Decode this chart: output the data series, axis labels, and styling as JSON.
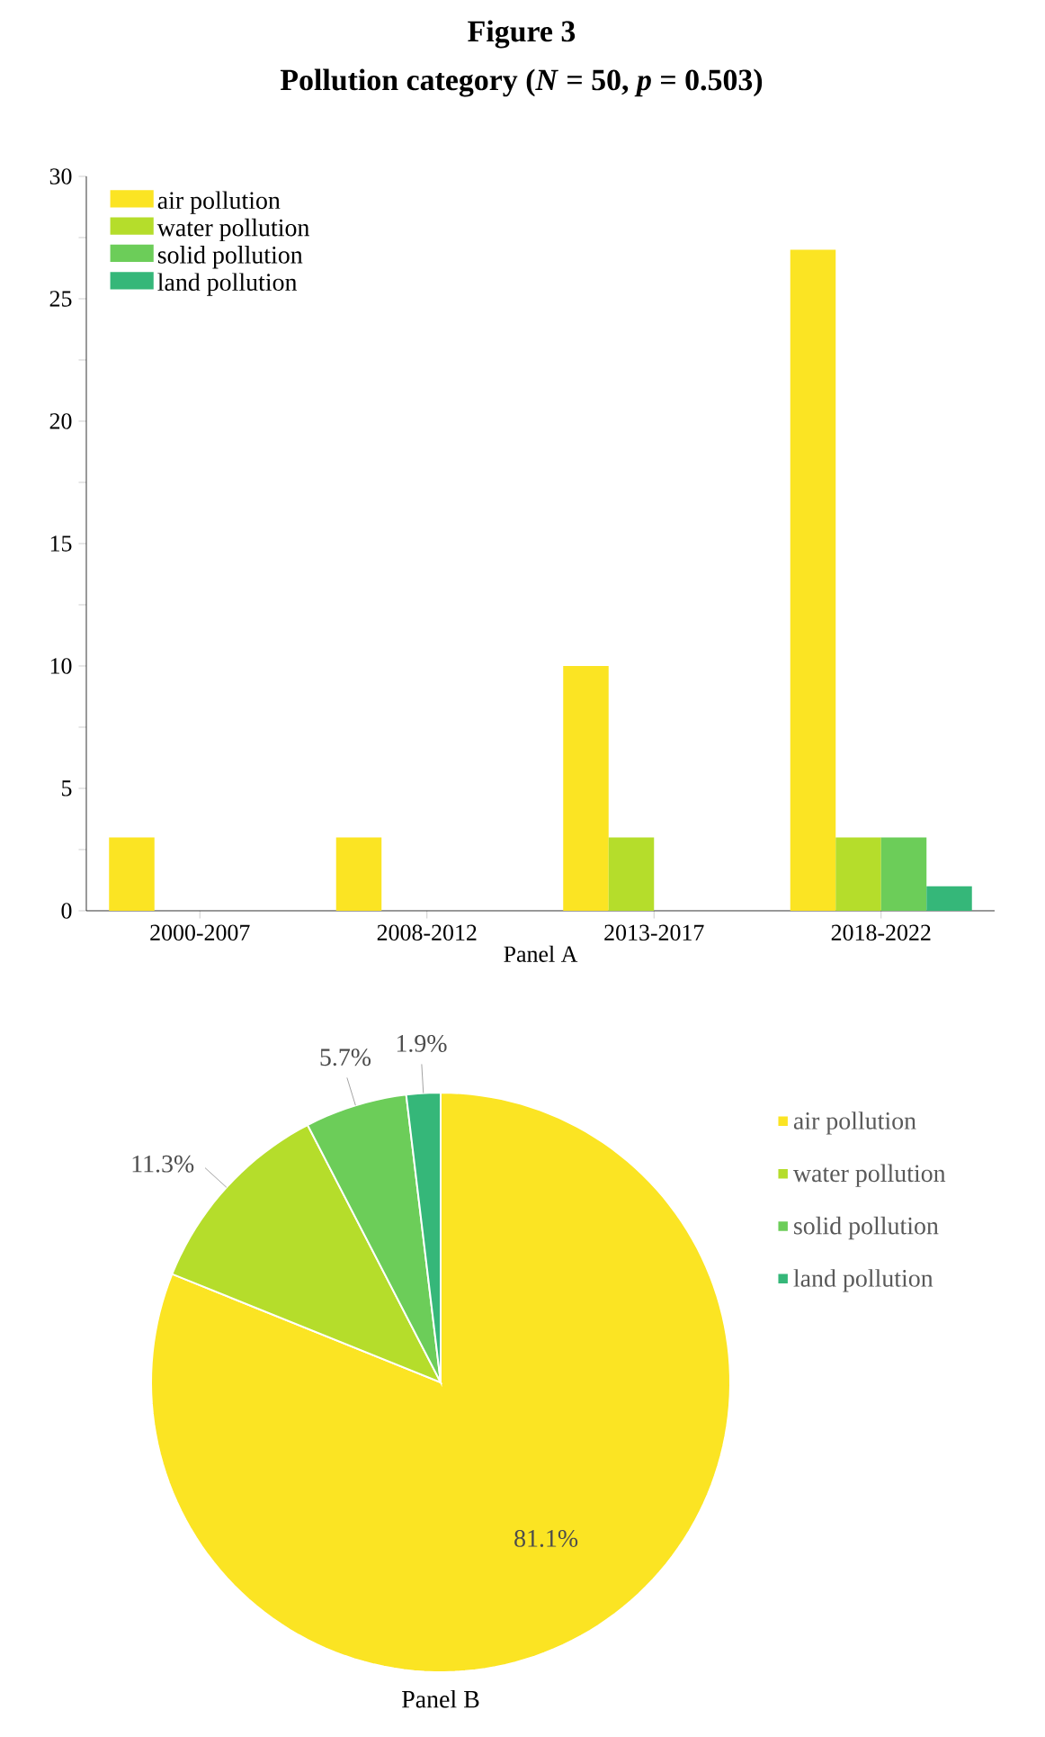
{
  "chart_data": [
    {
      "type": "bar",
      "title": "Figure 3",
      "subtitle": "Pollution category (*N* = 50, *p* = 0.503)",
      "xlabel": "Panel A",
      "categories": [
        "2000-2007",
        "2008-2012",
        "2013-2017",
        "2018-2022"
      ],
      "series": [
        {
          "name": "air pollution",
          "color": "#fbe423",
          "values": [
            3,
            3,
            10,
            27
          ]
        },
        {
          "name": "water pollution",
          "color": "#b5dd2b",
          "values": [
            0,
            0,
            3,
            3
          ]
        },
        {
          "name": "solid pollution",
          "color": "#6ccd59",
          "values": [
            0,
            0,
            0,
            3
          ]
        },
        {
          "name": "land pollution",
          "color": "#35b779",
          "values": [
            0,
            0,
            0,
            1
          ]
        }
      ],
      "ylim": [
        0,
        30
      ],
      "yticks": [
        0,
        {
          "value": 2.5,
          "label": null
        },
        5,
        {
          "value": 7.5,
          "label": null
        },
        10,
        {
          "value": 12.5,
          "label": null
        },
        15,
        {
          "value": 17.5,
          "label": null
        },
        20,
        {
          "value": 22.5,
          "label": null
        },
        25,
        {
          "value": 27.5,
          "label": null
        },
        30
      ],
      "legend": "top left"
    },
    {
      "type": "pie",
      "xlabel": "Panel B",
      "categories": [
        "air pollution",
        "water pollution",
        "solid pollution",
        "land pollution"
      ],
      "values": [
        81.1,
        11.3,
        5.7,
        1.9
      ],
      "colors": [
        "#fbe423",
        "#b5dd2b",
        "#6ccd59",
        "#35b779"
      ],
      "value_labels": [
        "81.1%",
        "11.3%",
        "5.7%",
        "1.9%"
      ],
      "legend": "right"
    }
  ]
}
